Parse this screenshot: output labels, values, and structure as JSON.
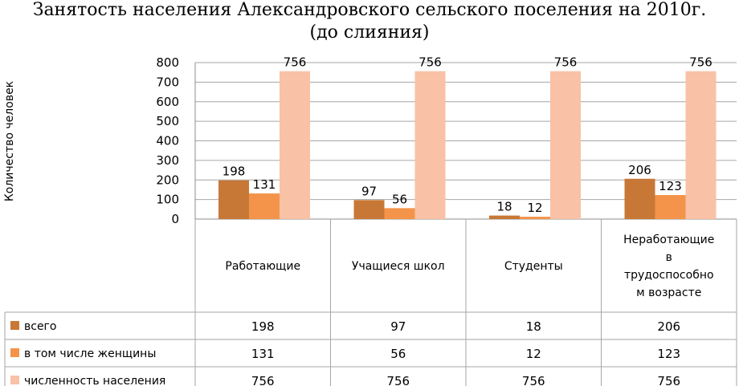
{
  "chart_data": {
    "type": "bar",
    "title": "Занятость населения Александровского сельского поселения на 2010г.",
    "subtitle": "(до слияния)",
    "ylabel": "Количество человек",
    "xlabel": "",
    "ylim": [
      0,
      800
    ],
    "yticks": [
      "0",
      "100",
      "200",
      "300",
      "400",
      "500",
      "600",
      "700",
      "800"
    ],
    "grid": true,
    "legend": "data-table",
    "categories": [
      [
        "Работающие"
      ],
      [
        "Учащиеся школ"
      ],
      [
        "Студенты"
      ],
      [
        "Неработающие",
        "в",
        "трудоспособно",
        "м возрасте"
      ]
    ],
    "series": [
      {
        "name": "всего",
        "values": [
          198,
          97,
          18,
          206
        ],
        "color": "#c87836"
      },
      {
        "name": "в том числе женщины",
        "values": [
          131,
          56,
          12,
          123
        ],
        "color": "#f4944a"
      },
      {
        "name": "численность населения",
        "values": [
          756,
          756,
          756,
          756
        ],
        "color": "#f9c1a5"
      }
    ]
  }
}
